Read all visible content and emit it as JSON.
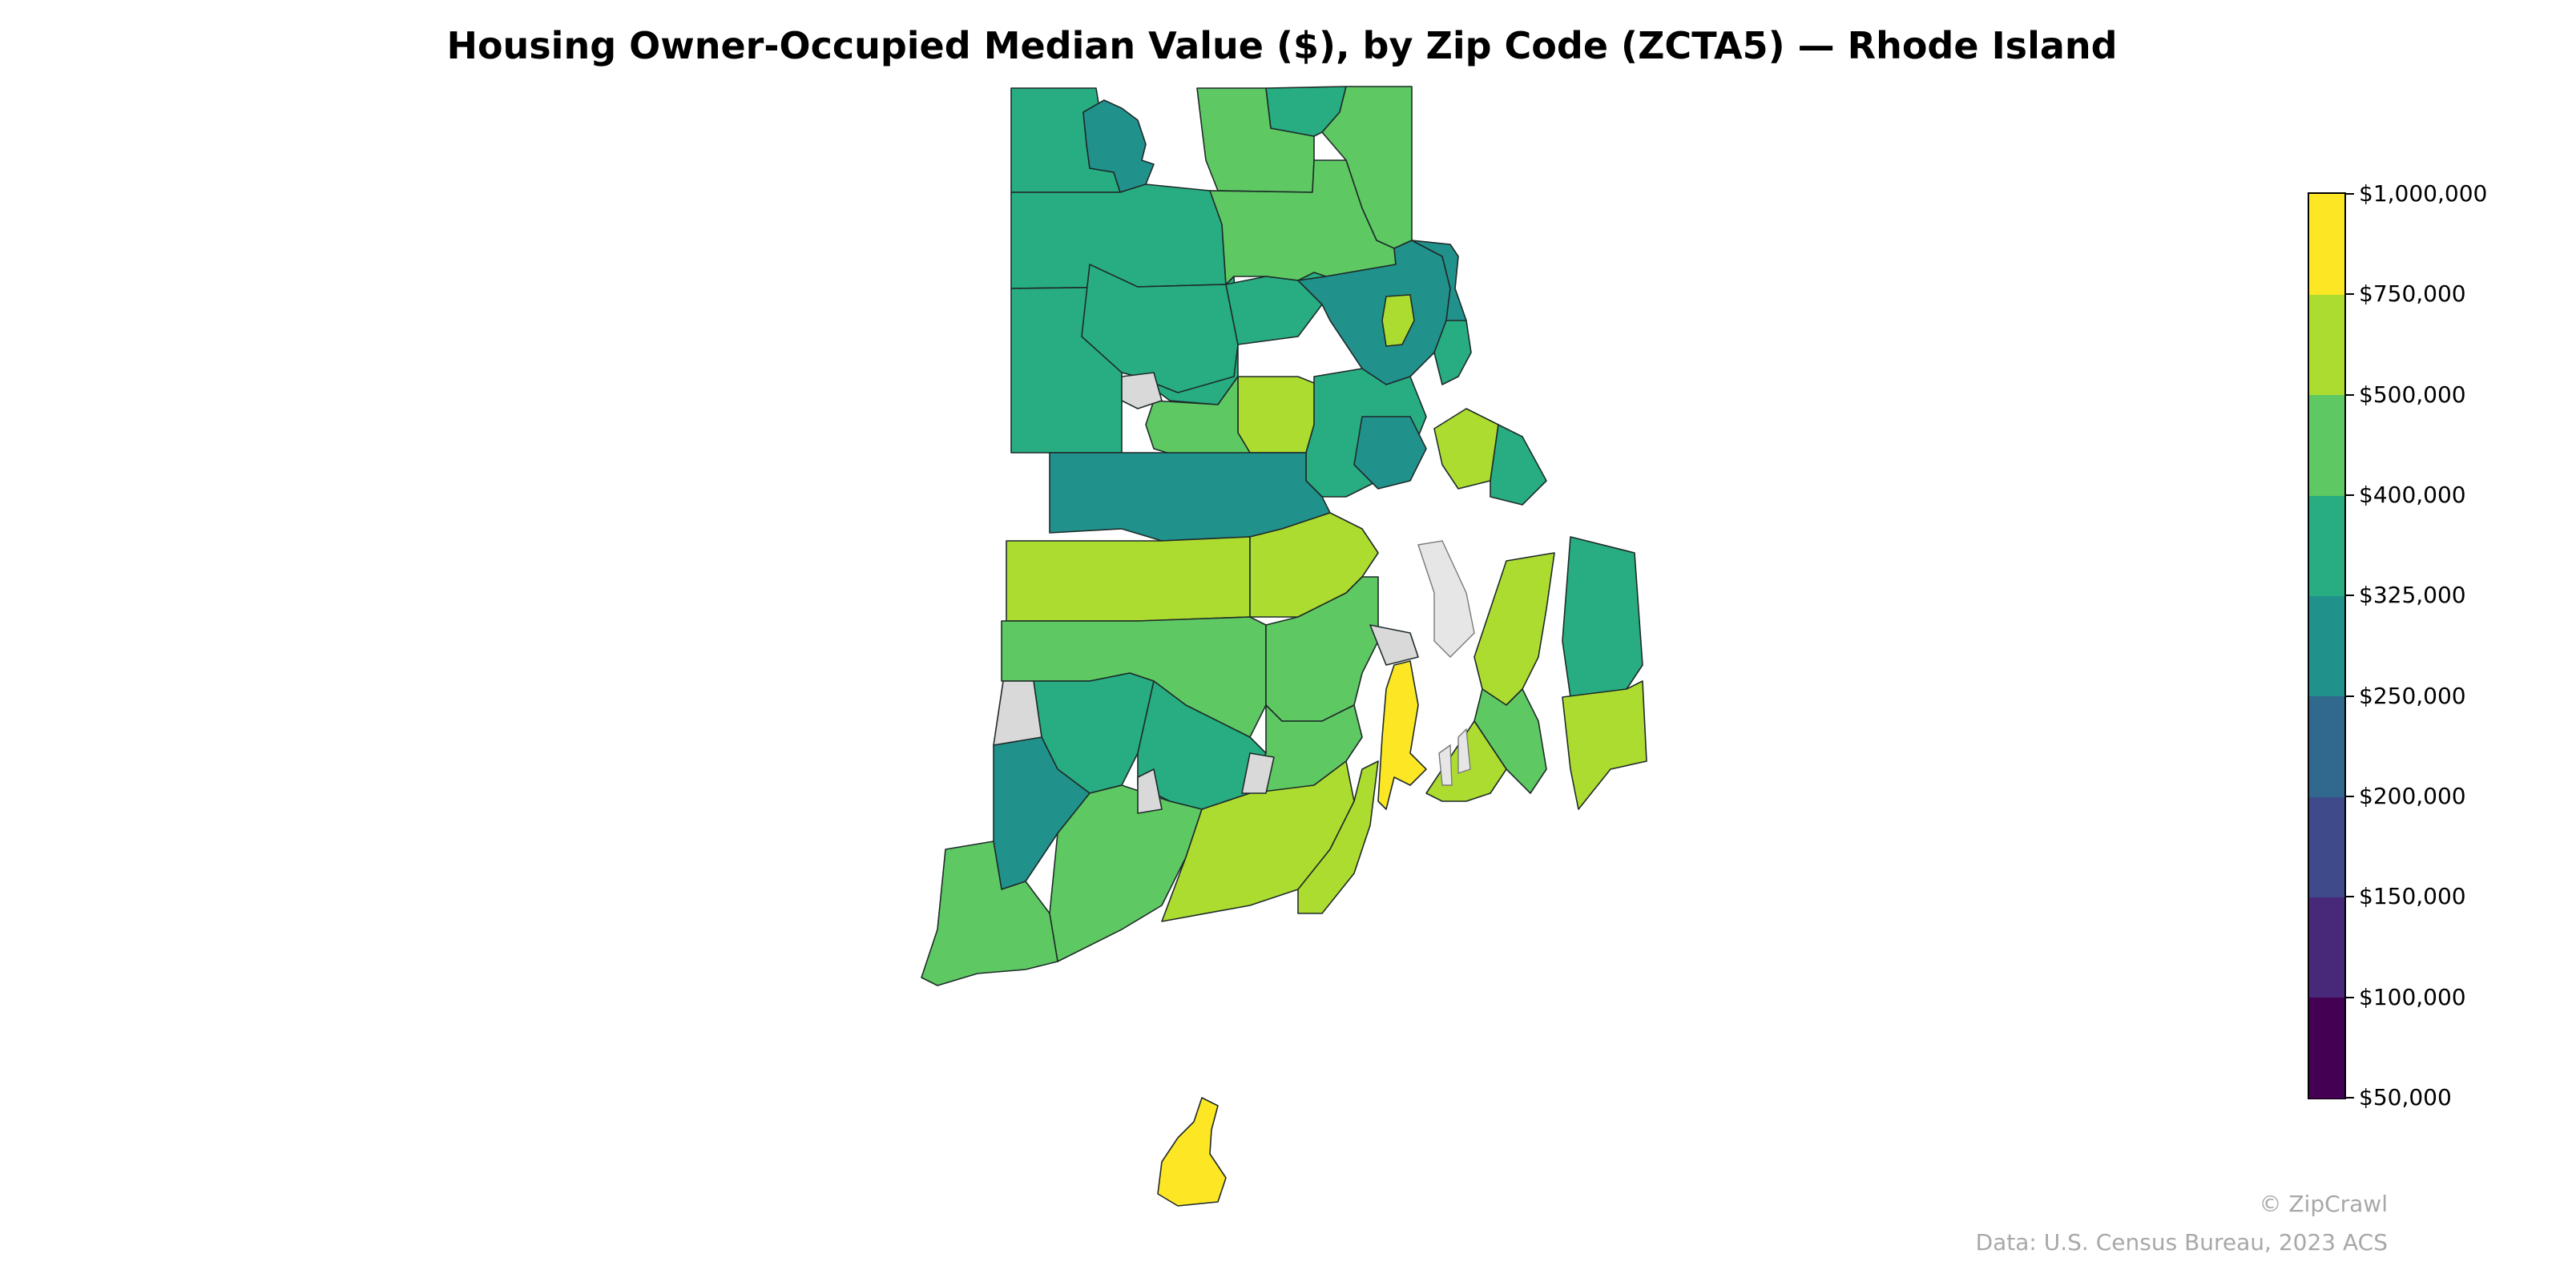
{
  "title": "Housing Owner-Occupied Median Value ($), by Zip Code (ZCTA5) — Rhode Island",
  "map": {
    "state": "Rhode Island",
    "no_data_color": "#d9d9d9",
    "water_color": "#e6e6e6",
    "color_scale": "viridis",
    "bins": [
      {
        "min": 50000,
        "max": 100000,
        "color": "#440154"
      },
      {
        "min": 100000,
        "max": 150000,
        "color": "#482878"
      },
      {
        "min": 150000,
        "max": 200000,
        "color": "#3e4a89"
      },
      {
        "min": 200000,
        "max": 250000,
        "color": "#31688e"
      },
      {
        "min": 250000,
        "max": 325000,
        "color": "#21918c"
      },
      {
        "min": 325000,
        "max": 400000,
        "color": "#27ad81"
      },
      {
        "min": 400000,
        "max": 500000,
        "color": "#5ec962"
      },
      {
        "min": 500000,
        "max": 750000,
        "color": "#addc30"
      },
      {
        "min": 750000,
        "max": 1000000,
        "color": "#fde725"
      }
    ],
    "regions": [
      {
        "name": "zip-north-west",
        "bin": 5
      },
      {
        "name": "zip-north-center",
        "bin": 4
      },
      {
        "name": "zip-north-top",
        "bin": 6
      },
      {
        "name": "zip-north-east-top",
        "bin": 5
      },
      {
        "name": "zip-north-east",
        "bin": 6
      },
      {
        "name": "zip-west-upper",
        "bin": 5
      },
      {
        "name": "zip-west-mid",
        "bin": 5
      },
      {
        "name": "zip-center-upper",
        "bin": 6
      },
      {
        "name": "zip-scituate",
        "bin": 5
      },
      {
        "name": "zip-smithfield",
        "bin": 5
      },
      {
        "name": "zip-providence-core",
        "bin": 4
      },
      {
        "name": "zip-providence-east",
        "bin": 4
      },
      {
        "name": "zip-east-upper-light",
        "bin": 7
      },
      {
        "name": "zip-east-green",
        "bin": 5
      },
      {
        "name": "zip-cranston-light",
        "bin": 7
      },
      {
        "name": "zip-johnston-green",
        "bin": 6
      },
      {
        "name": "zip-west-lower",
        "bin": 5
      },
      {
        "name": "zip-coventry",
        "bin": 4
      },
      {
        "name": "zip-warwick",
        "bin": 5
      },
      {
        "name": "zip-warwick-east",
        "bin": 4
      },
      {
        "name": "zip-barrington",
        "bin": 7
      },
      {
        "name": "zip-warren",
        "bin": 5
      },
      {
        "name": "zip-west-greenwich",
        "bin": 7
      },
      {
        "name": "zip-east-greenwich",
        "bin": 7
      },
      {
        "name": "zip-exeter",
        "bin": 6
      },
      {
        "name": "zip-north-kingstown",
        "bin": 6
      },
      {
        "name": "zip-richmond",
        "bin": 5
      },
      {
        "name": "zip-hope-valley",
        "bin": 5
      },
      {
        "name": "zip-hopkinton",
        "bin": 4
      },
      {
        "name": "zip-south-county",
        "bin": 6
      },
      {
        "name": "zip-westerly",
        "bin": 6
      },
      {
        "name": "zip-kingston",
        "bin": 6
      },
      {
        "name": "zip-wakefield",
        "bin": 7
      },
      {
        "name": "zip-narragansett",
        "bin": 7
      },
      {
        "name": "zip-jamestown",
        "bin": 8
      },
      {
        "name": "zip-portsmouth",
        "bin": 7
      },
      {
        "name": "zip-middletown",
        "bin": 6
      },
      {
        "name": "zip-newport",
        "bin": 7
      },
      {
        "name": "zip-tiverton",
        "bin": 5
      },
      {
        "name": "zip-little-compton",
        "bin": 7
      },
      {
        "name": "zip-block-island",
        "bin": 8
      }
    ]
  },
  "legend": {
    "labels": [
      "$50,000",
      "$100,000",
      "$150,000",
      "$200,000",
      "$250,000",
      "$325,000",
      "$400,000",
      "$500,000",
      "$750,000",
      "$1,000,000"
    ]
  },
  "footer": {
    "brand": "© ZipCrawl",
    "source": "Data: U.S. Census Bureau, 2023 ACS"
  }
}
